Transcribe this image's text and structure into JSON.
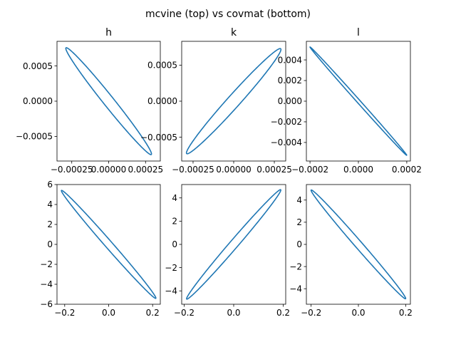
{
  "figure": {
    "suptitle": "mcvine (top) vs covmat (bottom)"
  },
  "chart_data": [
    {
      "type": "line",
      "title": "h",
      "series": [
        {
          "cx": 0.0,
          "cy": 0.0,
          "ux": 0.00029,
          "uy": -0.000755,
          "vx": 1.5e-05,
          "vy": 8e-05
        }
      ],
      "xlim": [
        -0.00035,
        0.00035
      ],
      "ylim": [
        -0.00085,
        0.00085
      ],
      "xticks": [
        {
          "v": -0.00025,
          "label": "−0.00025"
        },
        {
          "v": 0.0,
          "label": "0.00000"
        },
        {
          "v": 0.00025,
          "label": "0.00025"
        }
      ],
      "yticks": [
        {
          "v": -0.0005,
          "label": "−0.0005"
        },
        {
          "v": 0.0,
          "label": "0.0000"
        },
        {
          "v": 0.0005,
          "label": "0.0005"
        }
      ]
    },
    {
      "type": "line",
      "title": "k",
      "series": [
        {
          "cx": 0.0,
          "cy": 0.0,
          "ux": 0.00029,
          "uy": 0.000725,
          "vx": 2e-05,
          "vy": -8e-05
        }
      ],
      "xlim": [
        -0.00032,
        0.00032
      ],
      "ylim": [
        -0.00083,
        0.00083
      ],
      "xticks": [
        {
          "v": -0.00025,
          "label": "−0.00025"
        },
        {
          "v": 0.0,
          "label": "0.00000"
        },
        {
          "v": 0.00025,
          "label": "0.00025"
        }
      ],
      "yticks": [
        {
          "v": -0.0005,
          "label": "−0.0005"
        },
        {
          "v": 0.0,
          "label": "0.0000"
        },
        {
          "v": 0.0005,
          "label": "0.0005"
        }
      ]
    },
    {
      "type": "line",
      "title": "l",
      "series": [
        {
          "cx": 0.0,
          "cy": 0.0,
          "ux": 0.0002,
          "uy": -0.00525,
          "vx": 3e-06,
          "vy": 0.00015
        }
      ],
      "xlim": [
        -0.000215,
        0.000215
      ],
      "ylim": [
        -0.0058,
        0.0058
      ],
      "xticks": [
        {
          "v": -0.0002,
          "label": "−0.0002"
        },
        {
          "v": 0.0,
          "label": "0.0000"
        },
        {
          "v": 0.0002,
          "label": "0.0002"
        }
      ],
      "yticks": [
        {
          "v": -0.004,
          "label": "−0.004"
        },
        {
          "v": -0.002,
          "label": "−0.002"
        },
        {
          "v": 0.0,
          "label": "0.000"
        },
        {
          "v": 0.002,
          "label": "0.002"
        },
        {
          "v": 0.004,
          "label": "0.004"
        }
      ]
    },
    {
      "type": "line",
      "title": "",
      "series": [
        {
          "cx": 0.0,
          "cy": 0.0,
          "ux": 0.215,
          "uy": -5.4,
          "vx": 0.006,
          "vy": 0.4
        }
      ],
      "xlim": [
        -0.235,
        0.235
      ],
      "ylim": [
        -6,
        6
      ],
      "xticks": [
        {
          "v": -0.2,
          "label": "−0.2"
        },
        {
          "v": 0.0,
          "label": "0.0"
        },
        {
          "v": 0.2,
          "label": "0.2"
        }
      ],
      "yticks": [
        {
          "v": -6,
          "label": "−6"
        },
        {
          "v": -4,
          "label": "−4"
        },
        {
          "v": -2,
          "label": "−2"
        },
        {
          "v": 0,
          "label": "0"
        },
        {
          "v": 2,
          "label": "2"
        },
        {
          "v": 4,
          "label": "4"
        },
        {
          "v": 6,
          "label": "6"
        }
      ]
    },
    {
      "type": "line",
      "title": "",
      "series": [
        {
          "cx": 0.0,
          "cy": 0.0,
          "ux": 0.19,
          "uy": 4.7,
          "vx": 0.01,
          "vy": -0.3
        }
      ],
      "xlim": [
        -0.21,
        0.21
      ],
      "ylim": [
        -5.15,
        5.15
      ],
      "xticks": [
        {
          "v": -0.2,
          "label": "−0.2"
        },
        {
          "v": 0.0,
          "label": "0.0"
        },
        {
          "v": 0.2,
          "label": "0.2"
        }
      ],
      "yticks": [
        {
          "v": -4,
          "label": "−4"
        },
        {
          "v": -2,
          "label": "−2"
        },
        {
          "v": 0,
          "label": "0"
        },
        {
          "v": 2,
          "label": "2"
        },
        {
          "v": 4,
          "label": "4"
        }
      ]
    },
    {
      "type": "line",
      "title": "",
      "series": [
        {
          "cx": 0.0,
          "cy": 0.0,
          "ux": 0.2,
          "uy": -4.9,
          "vx": 0.008,
          "vy": 0.3
        }
      ],
      "xlim": [
        -0.22,
        0.22
      ],
      "ylim": [
        -5.4,
        5.4
      ],
      "xticks": [
        {
          "v": -0.2,
          "label": "−0.2"
        },
        {
          "v": 0.0,
          "label": "0.0"
        },
        {
          "v": 0.2,
          "label": "0.2"
        }
      ],
      "yticks": [
        {
          "v": -4,
          "label": "−4"
        },
        {
          "v": -2,
          "label": "−2"
        },
        {
          "v": 0,
          "label": "0"
        },
        {
          "v": 2,
          "label": "2"
        },
        {
          "v": 4,
          "label": "4"
        }
      ]
    }
  ],
  "colors": {
    "line": "#1f77b4",
    "axes": "#000000"
  }
}
